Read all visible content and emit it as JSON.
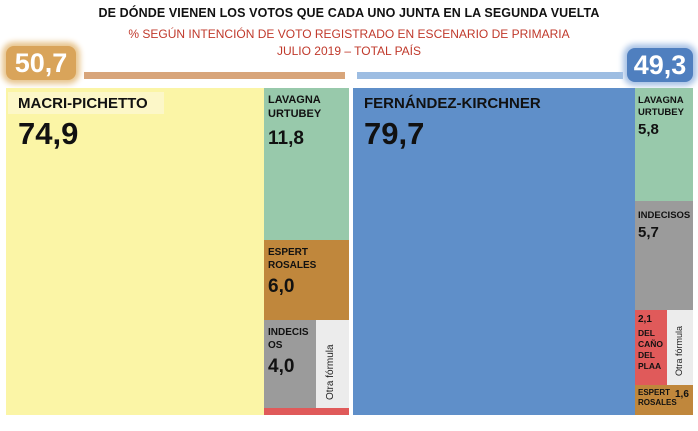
{
  "title": "DE DÓNDE VIENEN LOS VOTOS QUE CADA UNO JUNTA EN LA SEGUNDA VUELTA",
  "subtitle": "% SEGÚN INTENCIÓN DE VOTO REGISTRADO EN ESCENARIO DE PRIMARIA",
  "subtitle2": "JULIO 2019 – TOTAL PAÍS",
  "colors": {
    "macri": "#fbf5a6",
    "lavagna": "#98c9ab",
    "espert": "#c0873c",
    "indecisos": "#9b9b9b",
    "otra": "#ececec",
    "fk": "#5f8fc9",
    "delcano": "#e05a5a"
  },
  "chart_data": [
    {
      "type": "treemap",
      "title": "",
      "total_label": "50,7",
      "total": 50.7,
      "items": [
        {
          "name": "MACRI-PICHETTO",
          "value": 74.9,
          "label": "74,9"
        },
        {
          "name": "LAVAGNA URTUBEY",
          "value": 11.8,
          "label": "11,8"
        },
        {
          "name": "ESPERT ROSALES",
          "value": 6.0,
          "label": "6,0"
        },
        {
          "name": "INDECISOS",
          "value": 4.0,
          "label": "4,0"
        },
        {
          "name": "Otra fórmula",
          "value": null,
          "label": ""
        }
      ]
    },
    {
      "type": "treemap",
      "title": "",
      "total_label": "49,3",
      "total": 49.3,
      "items": [
        {
          "name": "FERNÁNDEZ-KIRCHNER",
          "value": 79.7,
          "label": "79,7"
        },
        {
          "name": "LAVAGNA URTUBEY",
          "value": 5.8,
          "label": "5,8"
        },
        {
          "name": "INDECISOS",
          "value": 5.7,
          "label": "5,7"
        },
        {
          "name": "DEL CAÑO DEL PLAA",
          "value": 2.1,
          "label": "2,1"
        },
        {
          "name": "Otra fórmula",
          "value": null,
          "label": ""
        },
        {
          "name": "ESPERT ROSALES",
          "value": 1.6,
          "label": "1,6"
        }
      ]
    }
  ]
}
